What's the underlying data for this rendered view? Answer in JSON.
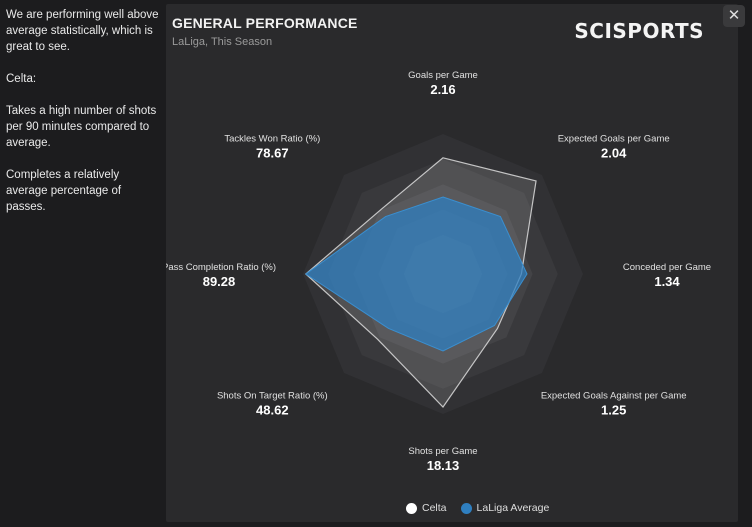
{
  "side_text": {
    "p1": "We are performing well above average statistically, which is great to see.",
    "p2": "Celta:",
    "p3": "Takes a high number of shots per 90 minutes compared to average.",
    "p4": "Completes a relatively average percentage of passes."
  },
  "panel": {
    "title": "GENERAL PERFORMANCE",
    "subtitle": "LaLiga, This Season",
    "logo": "SCISPORTS",
    "close_glyph": "✕"
  },
  "chart_data": {
    "type": "radar",
    "axes": [
      {
        "label": "Goals per Game",
        "value": "2.16"
      },
      {
        "label": "Expected Goals per Game",
        "value": "2.04"
      },
      {
        "label": "Conceded per Game",
        "value": "1.34"
      },
      {
        "label": "Expected Goals Against per Game",
        "value": "1.25"
      },
      {
        "label": "Shots per Game",
        "value": "18.13"
      },
      {
        "label": "Shots On Target Ratio (%)",
        "value": "48.62"
      },
      {
        "label": "Pass Completion Ratio (%)",
        "value": "89.28"
      },
      {
        "label": "Tackles Won Ratio (%)",
        "value": "78.67"
      }
    ],
    "series": [
      {
        "name": "Celta",
        "color": "#ffffff",
        "values": [
          0.83,
          0.94,
          0.56,
          0.55,
          0.95,
          0.66,
          0.98,
          0.64
        ]
      },
      {
        "name": "LaLiga Average",
        "color": "#3a86c0",
        "values": [
          0.55,
          0.58,
          0.6,
          0.52,
          0.55,
          0.55,
          0.98,
          0.58
        ]
      }
    ],
    "legend_position": "bottom"
  },
  "legend": {
    "celta": "Celta",
    "laliga": "LaLiga Average",
    "celta_color": "#ffffff",
    "laliga_color": "#2f7fc0"
  }
}
